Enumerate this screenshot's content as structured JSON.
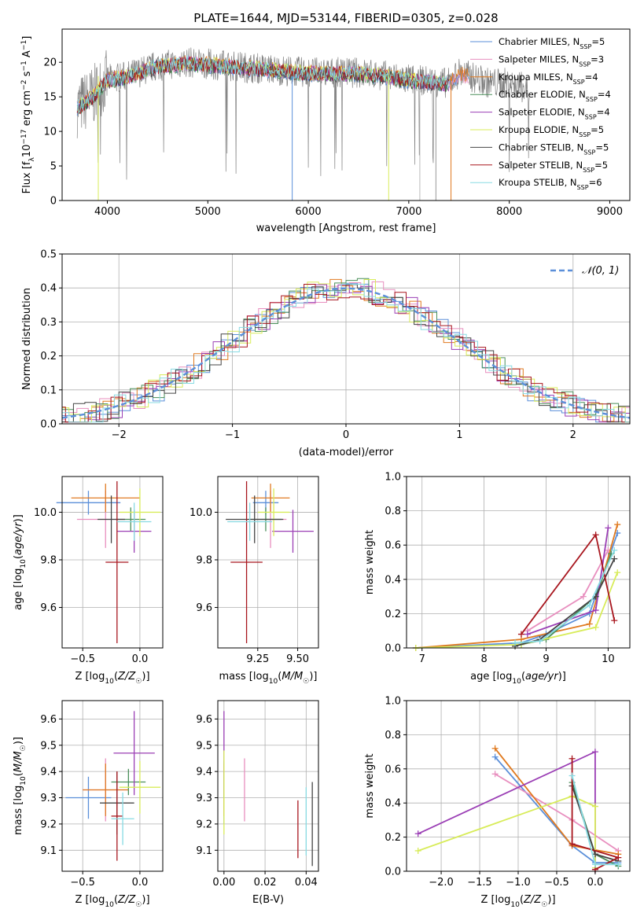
{
  "colors": {
    "Chabrier MILES": "#5b8fd9",
    "Salpeter MILES": "#e88fbf",
    "Kroupa MILES": "#e07a20",
    "Chabrier ELODIE": "#4a8f5a",
    "Salpeter ELODIE": "#9b3fb5",
    "Kroupa ELODIE": "#d8ec5a",
    "Chabrier STELIB": "#444444",
    "Salpeter STELIB": "#a8161e",
    "Kroupa STELIB": "#88dbe3",
    "data": "#808080"
  },
  "chart_data": [
    {
      "type": "line",
      "title": "PLATE=1644, MJD=53144, FIBERID=0305, z=0.028",
      "xlabel": "wavelength [Angstrom, rest frame]",
      "ylabel": "Flux [f_λ10^-17 erg cm^-2 s^-1 A^-1]",
      "xlim": [
        3550,
        9200
      ],
      "ylim": [
        0,
        24.8
      ],
      "xticks": [
        4000,
        5000,
        6000,
        7000,
        8000,
        9000
      ],
      "yticks": [
        0,
        5,
        10,
        15,
        20
      ],
      "legend_position": "top-right",
      "legend": [
        {
          "model": "Chabrier MILES",
          "nssp": 5
        },
        {
          "model": "Salpeter MILES",
          "nssp": 3
        },
        {
          "model": "Kroupa MILES",
          "nssp": 4
        },
        {
          "model": "Chabrier ELODIE",
          "nssp": 4
        },
        {
          "model": "Salpeter ELODIE",
          "nssp": 4
        },
        {
          "model": "Kroupa ELODIE",
          "nssp": 5
        },
        {
          "model": "Chabrier STELIB",
          "nssp": 5
        },
        {
          "model": "Salpeter STELIB",
          "nssp": 5
        },
        {
          "model": "Kroupa STELIB",
          "nssp": 6
        }
      ],
      "spectrum_shape": {
        "x": [
          3700,
          3850,
          4000,
          4200,
          4500,
          4800,
          5200,
          5600,
          6000,
          6500,
          6800,
          7000,
          7200,
          7400,
          7500,
          7600,
          7800,
          8000,
          8200
        ],
        "y": [
          13.5,
          15.0,
          17.5,
          18.0,
          19.5,
          20.0,
          19.5,
          19.0,
          18.5,
          18.5,
          18.0,
          17.5,
          17.3,
          17.0,
          18.5,
          18.0,
          17.0,
          17.0,
          16.0
        ]
      }
    },
    {
      "type": "histogram",
      "xlabel": "(data-model)/error",
      "ylabel": "Normed distribution",
      "xlim": [
        -2.5,
        2.5
      ],
      "ylim": [
        0,
        0.5
      ],
      "xticks": [
        -2,
        -1,
        0,
        1,
        2
      ],
      "yticks": [
        0.0,
        0.1,
        0.2,
        0.3,
        0.4,
        0.5
      ],
      "reference_curve": "𝒩(0, 1)",
      "bin_width": 0.1
    },
    {
      "type": "errorbar",
      "xlabel": "Z [log10(Z/Z☉)]",
      "ylabel": "age [log10(age/yr)]",
      "xlim": [
        -0.68,
        0.2
      ],
      "ylim": [
        9.43,
        10.15
      ],
      "xticks": [
        -0.5,
        0.0
      ],
      "yticks": [
        9.6,
        9.8,
        10.0
      ],
      "points": [
        {
          "model": "Chabrier MILES",
          "x": -0.45,
          "xerr": 0.28,
          "y": 10.04,
          "yerr": 0.05
        },
        {
          "model": "Salpeter MILES",
          "x": -0.3,
          "xerr": 0.25,
          "y": 9.97,
          "yerr": 0.12
        },
        {
          "model": "Kroupa MILES",
          "x": -0.3,
          "xerr": 0.3,
          "y": 10.06,
          "yerr": 0.06
        },
        {
          "model": "Chabrier ELODIE",
          "x": -0.08,
          "xerr": 0.13,
          "y": 9.97,
          "yerr": 0.05
        },
        {
          "model": "Salpeter ELODIE",
          "x": -0.05,
          "xerr": 0.15,
          "y": 9.92,
          "yerr": 0.09
        },
        {
          "model": "Kroupa ELODIE",
          "x": 0.0,
          "xerr": 0.18,
          "y": 10.0,
          "yerr": 0.1
        },
        {
          "model": "Chabrier STELIB",
          "x": -0.25,
          "xerr": 0.12,
          "y": 9.97,
          "yerr": 0.1
        },
        {
          "model": "Salpeter STELIB",
          "x": -0.2,
          "xerr": 0.1,
          "y": 9.79,
          "yerr": 0.34
        },
        {
          "model": "Kroupa STELIB",
          "x": -0.05,
          "xerr": 0.15,
          "y": 9.96,
          "yerr": 0.08
        }
      ]
    },
    {
      "type": "errorbar",
      "xlabel": "mass [log10(M/M☉)]",
      "ylabel": "",
      "xlim": [
        9.0,
        9.63
      ],
      "ylim": [
        9.43,
        10.15
      ],
      "xticks": [
        9.25,
        9.5
      ],
      "yticks": [
        9.6,
        9.8,
        10.0
      ],
      "points": [
        {
          "model": "Chabrier MILES",
          "x": 9.3,
          "xerr": 0.08,
          "y": 10.04,
          "yerr": 0.05
        },
        {
          "model": "Salpeter MILES",
          "x": 9.33,
          "xerr": 0.1,
          "y": 9.97,
          "yerr": 0.12
        },
        {
          "model": "Kroupa MILES",
          "x": 9.33,
          "xerr": 0.12,
          "y": 10.06,
          "yerr": 0.06
        },
        {
          "model": "Chabrier ELODIE",
          "x": 9.3,
          "xerr": 0.1,
          "y": 9.97,
          "yerr": 0.05
        },
        {
          "model": "Salpeter ELODIE",
          "x": 9.47,
          "xerr": 0.13,
          "y": 9.92,
          "yerr": 0.09
        },
        {
          "model": "Kroupa ELODIE",
          "x": 9.35,
          "xerr": 0.1,
          "y": 10.0,
          "yerr": 0.1
        },
        {
          "model": "Chabrier STELIB",
          "x": 9.23,
          "xerr": 0.18,
          "y": 9.97,
          "yerr": 0.1
        },
        {
          "model": "Salpeter STELIB",
          "x": 9.18,
          "xerr": 0.1,
          "y": 9.79,
          "yerr": 0.34
        },
        {
          "model": "Kroupa STELIB",
          "x": 9.2,
          "xerr": 0.14,
          "y": 9.96,
          "yerr": 0.08
        }
      ]
    },
    {
      "type": "line",
      "xlabel": "age [log10(age/yr)]",
      "ylabel": "mass weight",
      "xlim": [
        6.75,
        10.35
      ],
      "ylim": [
        0,
        1.0
      ],
      "xticks": [
        7,
        8,
        9,
        10
      ],
      "yticks": [
        0.0,
        0.2,
        0.4,
        0.6,
        0.8,
        1.0
      ],
      "series": [
        {
          "model": "Chabrier MILES",
          "x": [
            6.9,
            8.6,
            9.0,
            9.7,
            10.15
          ],
          "y": [
            0.0,
            0.03,
            0.08,
            0.2,
            0.67
          ]
        },
        {
          "model": "Salpeter MILES",
          "x": [
            8.7,
            9.6,
            10.0
          ],
          "y": [
            0.1,
            0.3,
            0.57
          ]
        },
        {
          "model": "Kroupa MILES",
          "x": [
            6.9,
            8.6,
            9.7,
            10.15
          ],
          "y": [
            0.0,
            0.05,
            0.14,
            0.72
          ]
        },
        {
          "model": "Chabrier ELODIE",
          "x": [
            8.6,
            9.0,
            9.8,
            10.05
          ],
          "y": [
            0.02,
            0.05,
            0.3,
            0.55
          ]
        },
        {
          "model": "Salpeter ELODIE",
          "x": [
            8.7,
            9.8,
            10.0
          ],
          "y": [
            0.08,
            0.22,
            0.7
          ]
        },
        {
          "model": "Kroupa ELODIE",
          "x": [
            6.9,
            8.6,
            9.8,
            10.15
          ],
          "y": [
            0.0,
            0.02,
            0.12,
            0.44
          ]
        },
        {
          "model": "Chabrier STELIB",
          "x": [
            8.5,
            8.9,
            9.8,
            10.1
          ],
          "y": [
            0.01,
            0.05,
            0.3,
            0.52
          ]
        },
        {
          "model": "Salpeter STELIB",
          "x": [
            8.6,
            9.8,
            10.1
          ],
          "y": [
            0.08,
            0.66,
            0.16
          ]
        },
        {
          "model": "Kroupa STELIB",
          "x": [
            8.5,
            8.9,
            9.7,
            10.1
          ],
          "y": [
            0.03,
            0.04,
            0.25,
            0.57
          ]
        }
      ]
    },
    {
      "type": "errorbar",
      "xlabel": "Z [log10(Z/Z☉)]",
      "ylabel": "mass [log10(M/M☉)]",
      "xlim": [
        -0.68,
        0.2
      ],
      "ylim": [
        9.02,
        9.67
      ],
      "xticks": [
        -0.5,
        0.0
      ],
      "yticks": [
        9.1,
        9.2,
        9.3,
        9.4,
        9.5,
        9.6
      ],
      "points": [
        {
          "model": "Chabrier MILES",
          "x": -0.45,
          "xerr": 0.2,
          "y": 9.3,
          "yerr": 0.08
        },
        {
          "model": "Salpeter MILES",
          "x": -0.3,
          "xerr": 0.2,
          "y": 9.33,
          "yerr": 0.12
        },
        {
          "model": "Kroupa MILES",
          "x": -0.3,
          "xerr": 0.2,
          "y": 9.33,
          "yerr": 0.1
        },
        {
          "model": "Chabrier ELODIE",
          "x": -0.1,
          "xerr": 0.15,
          "y": 9.36,
          "yerr": 0.05
        },
        {
          "model": "Salpeter ELODIE",
          "x": -0.05,
          "xerr": 0.18,
          "y": 9.47,
          "yerr": 0.16
        },
        {
          "model": "Kroupa ELODIE",
          "x": 0.0,
          "xerr": 0.18,
          "y": 9.34,
          "yerr": 0.1
        },
        {
          "model": "Chabrier STELIB",
          "x": -0.2,
          "xerr": 0.15,
          "y": 9.28,
          "yerr": 0.12
        },
        {
          "model": "Salpeter STELIB",
          "x": -0.2,
          "xerr": 0.05,
          "y": 9.23,
          "yerr": 0.17
        },
        {
          "model": "Kroupa STELIB",
          "x": -0.15,
          "xerr": 0.1,
          "y": 9.22,
          "yerr": 0.1
        }
      ]
    },
    {
      "type": "errorbar",
      "xlabel": "E(B-V)",
      "ylabel": "",
      "xlim": [
        -0.003,
        0.046
      ],
      "ylim": [
        9.02,
        9.67
      ],
      "xticks": [
        0.0,
        0.02,
        0.04
      ],
      "yticks": [
        9.1,
        9.2,
        9.3,
        9.4,
        9.5,
        9.6
      ],
      "points": [
        {
          "model": "Chabrier MILES",
          "x": 0.0,
          "xerr": 0,
          "y": 9.32,
          "yerr": 0.12
        },
        {
          "model": "Salpeter MILES",
          "x": 0.01,
          "xerr": 0,
          "y": 9.33,
          "yerr": 0.12
        },
        {
          "model": "Kroupa MILES",
          "x": 0.0,
          "xerr": 0,
          "y": 9.33,
          "yerr": 0.1
        },
        {
          "model": "Chabrier ELODIE",
          "x": 0.0,
          "xerr": 0,
          "y": 9.35,
          "yerr": 0.05
        },
        {
          "model": "Salpeter ELODIE",
          "x": 0.0,
          "xerr": 0,
          "y": 9.47,
          "yerr": 0.16
        },
        {
          "model": "Kroupa ELODIE",
          "x": 0.0,
          "xerr": 0,
          "y": 9.32,
          "yerr": 0.16
        },
        {
          "model": "Chabrier STELIB",
          "x": 0.043,
          "xerr": 0,
          "y": 9.2,
          "yerr": 0.16
        },
        {
          "model": "Salpeter STELIB",
          "x": 0.036,
          "xerr": 0,
          "y": 9.18,
          "yerr": 0.11
        },
        {
          "model": "Kroupa STELIB",
          "x": 0.04,
          "xerr": 0,
          "y": 9.21,
          "yerr": 0.13
        }
      ]
    },
    {
      "type": "line",
      "xlabel": "Z [log10(Z/Z☉)]",
      "ylabel": "mass weight",
      "xlim": [
        -2.45,
        0.45
      ],
      "ylim": [
        0,
        1.0
      ],
      "xticks": [
        -2.0,
        -1.5,
        -1.0,
        -0.5,
        0.0
      ],
      "yticks": [
        0.0,
        0.2,
        0.4,
        0.6,
        0.8,
        1.0
      ],
      "series": [
        {
          "model": "Chabrier MILES",
          "x": [
            -1.3,
            -0.3,
            0.0,
            0.3
          ],
          "y": [
            0.67,
            0.15,
            0.05,
            0.05
          ]
        },
        {
          "model": "Salpeter MILES",
          "x": [
            -1.3,
            -0.3,
            0.3
          ],
          "y": [
            0.57,
            0.3,
            0.12
          ]
        },
        {
          "model": "Kroupa MILES",
          "x": [
            -1.3,
            -0.3,
            0.3
          ],
          "y": [
            0.72,
            0.15,
            0.1
          ]
        },
        {
          "model": "Chabrier ELODIE",
          "x": [
            -0.3,
            0.0,
            0.3
          ],
          "y": [
            0.52,
            0.1,
            0.03
          ]
        },
        {
          "model": "Salpeter ELODIE",
          "x": [
            -2.3,
            0.0,
            0.0
          ],
          "y": [
            0.22,
            0.7,
            0.01
          ]
        },
        {
          "model": "Kroupa ELODIE",
          "x": [
            -2.3,
            -0.3,
            0.0,
            0.0
          ],
          "y": [
            0.12,
            0.44,
            0.38,
            0.02
          ]
        },
        {
          "model": "Chabrier STELIB",
          "x": [
            -0.3,
            0.0,
            0.3
          ],
          "y": [
            0.5,
            0.1,
            0.06
          ]
        },
        {
          "model": "Salpeter STELIB",
          "x": [
            -0.3,
            -0.3,
            0.3,
            0.0
          ],
          "y": [
            0.66,
            0.16,
            0.08,
            0.01
          ]
        },
        {
          "model": "Kroupa STELIB",
          "x": [
            -0.3,
            0.0,
            0.3
          ],
          "y": [
            0.56,
            0.04,
            0.04
          ]
        }
      ]
    }
  ]
}
